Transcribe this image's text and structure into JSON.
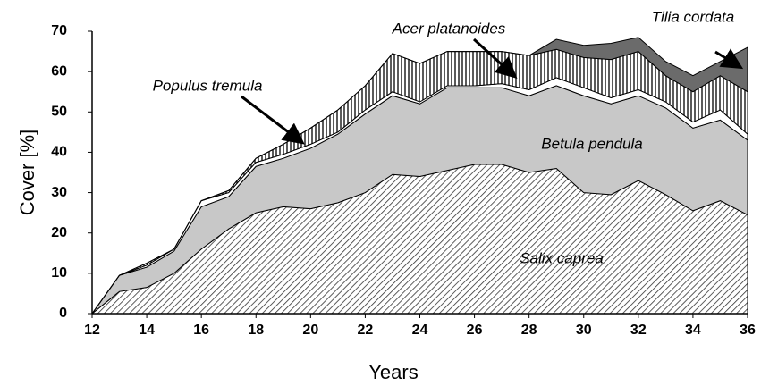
{
  "chart_data": {
    "type": "stacked_area",
    "x_label": "Years",
    "y_label": "Cover [%]",
    "x": [
      12,
      13,
      14,
      15,
      16,
      17,
      18,
      19,
      20,
      21,
      22,
      23,
      24,
      25,
      26,
      27,
      28,
      29,
      30,
      31,
      32,
      33,
      34,
      35,
      36
    ],
    "series": [
      {
        "name": "Salix caprea",
        "color": "#333333",
        "pattern": "diagonal",
        "values": [
          0,
          5.5,
          6.5,
          10,
          16,
          21,
          25,
          26.5,
          26,
          27.5,
          30,
          34.5,
          34,
          35.5,
          37,
          37,
          35,
          36,
          30,
          29.5,
          33,
          29.5,
          25.5,
          28,
          24.5
        ]
      },
      {
        "name": "Betula pendula",
        "color": "#c8c8c8",
        "values": [
          0,
          4,
          5,
          5.5,
          10.5,
          8,
          11.5,
          12,
          15,
          17,
          19.5,
          19.5,
          18,
          20.5,
          19,
          19,
          19,
          20.5,
          24,
          22.5,
          21,
          21.5,
          20.5,
          20,
          18.5
        ]
      },
      {
        "name": "Populus tremula",
        "color": "#ffffff",
        "values": [
          0,
          0,
          0.5,
          0.5,
          1.5,
          1,
          1,
          1,
          1,
          0.5,
          1,
          1,
          0.5,
          0.5,
          0.5,
          1,
          1.5,
          2,
          2,
          1.5,
          1.5,
          1.5,
          1.5,
          2.5,
          1.5
        ]
      },
      {
        "name": "Acer platanoides",
        "color": "#222222",
        "pattern": "vertical",
        "values": [
          0,
          0,
          0.5,
          0,
          0,
          0.5,
          1,
          2.5,
          4,
          5.5,
          6,
          9.5,
          9.5,
          8.5,
          8.5,
          8,
          8.5,
          7,
          7.5,
          9.5,
          9.5,
          6.5,
          7.5,
          8.5,
          10.5
        ]
      },
      {
        "name": "Tilia cordata",
        "color": "#6b6b6b",
        "values": [
          0,
          0,
          0,
          0,
          0,
          0,
          0,
          0,
          0,
          0,
          0,
          0,
          0,
          0,
          0,
          0,
          0,
          2.5,
          3,
          4,
          3.5,
          3.5,
          4,
          3.5,
          11
        ]
      }
    ],
    "xlim": [
      12,
      36
    ],
    "xticks": [
      12,
      14,
      16,
      18,
      20,
      22,
      24,
      26,
      28,
      30,
      32,
      34,
      36
    ],
    "ylim": [
      0,
      70
    ],
    "yticks": [
      0,
      10,
      20,
      30,
      40,
      50,
      60,
      70
    ]
  }
}
